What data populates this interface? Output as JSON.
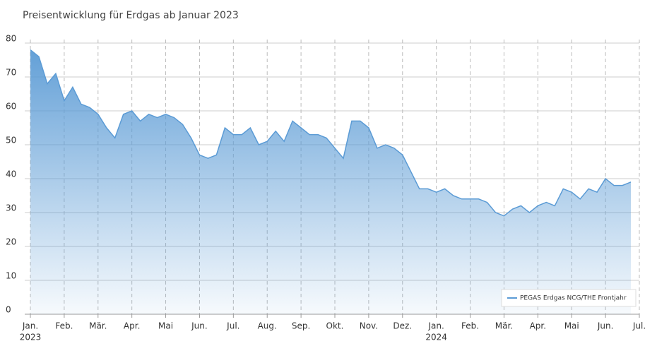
{
  "chart_data": {
    "type": "area",
    "title": "Preisentwicklung für Erdgas ab Januar 2023",
    "categories": [
      "Jan.",
      null,
      null,
      null,
      "Feb.",
      null,
      null,
      null,
      "Mär.",
      null,
      null,
      null,
      "Apr.",
      null,
      null,
      null,
      "Mai",
      null,
      null,
      null,
      "Jun.",
      null,
      null,
      null,
      "Jul.",
      null,
      null,
      null,
      "Aug.",
      null,
      null,
      null,
      "Sep.",
      null,
      null,
      null,
      "Okt.",
      null,
      null,
      null,
      "Nov.",
      null,
      null,
      null,
      "Dez.",
      null,
      null,
      null,
      "Jan.",
      null,
      null,
      null,
      "Feb.",
      null,
      null,
      null,
      "Mär.",
      null,
      null,
      null,
      "Apr.",
      null,
      null,
      null,
      "Mai",
      null,
      null,
      null,
      "Jun.",
      null,
      null,
      null,
      "Jul."
    ],
    "x_year_labels": [
      "2023",
      "2024"
    ],
    "series": [
      {
        "name": "PEGAS Erdgas NCG/THE Frontjahr",
        "color": "#5b9bd5",
        "values": [
          78,
          76,
          68,
          71,
          63,
          67,
          62,
          61,
          59,
          55,
          52,
          59,
          60,
          57,
          59,
          58,
          59,
          58,
          56,
          52,
          47,
          46,
          47,
          55,
          53,
          53,
          55,
          50,
          51,
          54,
          51,
          57,
          55,
          53,
          53,
          52,
          49,
          46,
          57,
          57,
          55,
          49,
          50,
          49,
          47,
          42,
          37,
          37,
          36,
          37,
          35,
          34,
          34,
          34,
          33,
          30,
          29,
          31,
          32,
          30,
          32,
          33,
          32,
          37,
          36,
          34,
          37,
          36,
          40,
          38,
          38,
          39,
          null
        ]
      }
    ],
    "ylim": [
      0,
      80
    ],
    "yticks": [
      0,
      10,
      20,
      30,
      40,
      50,
      60,
      70,
      80
    ],
    "grid": true,
    "legend": "lower right"
  }
}
